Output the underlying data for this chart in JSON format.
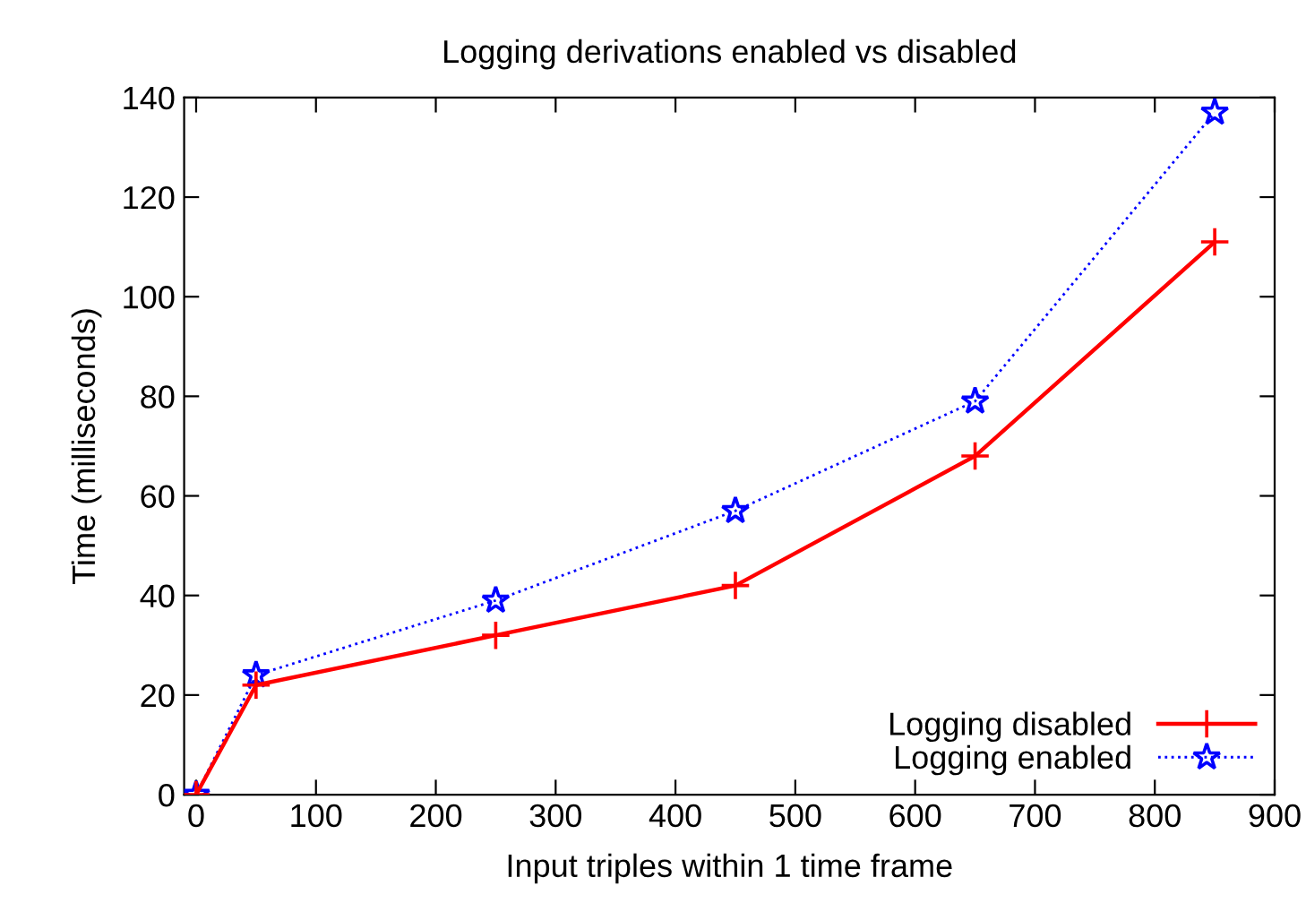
{
  "chart_data": {
    "type": "line",
    "title": "Logging derivations enabled vs disabled",
    "xlabel": "Input triples within 1 time frame",
    "ylabel": "Time (milliseconds)",
    "x": [
      0,
      50,
      250,
      450,
      650,
      850
    ],
    "series": [
      {
        "name": "Logging disabled",
        "color": "#ff0000",
        "values": [
          0,
          22,
          32,
          42,
          68,
          111
        ],
        "marker": "cross",
        "line_style": "solid"
      },
      {
        "name": "Logging enabled",
        "color": "#0000ff",
        "values": [
          0,
          24,
          39,
          57,
          79,
          137
        ],
        "marker": "star",
        "line_style": "dotted"
      }
    ],
    "xlim": [
      -10,
      900
    ],
    "xticks": [
      0,
      100,
      200,
      300,
      400,
      500,
      600,
      700,
      800,
      900
    ],
    "ylim": [
      0,
      140
    ],
    "yticks": [
      0,
      20,
      40,
      60,
      80,
      100,
      120,
      140
    ],
    "legend": "bottom right",
    "grid": false
  }
}
